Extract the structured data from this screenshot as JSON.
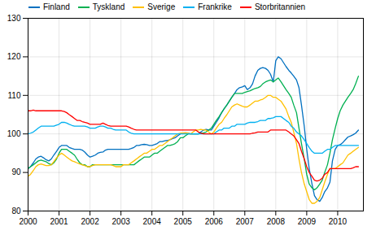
{
  "chart_data": {
    "type": "line",
    "x": [
      2000.0,
      2000.08,
      2000.17,
      2000.25,
      2000.33,
      2000.42,
      2000.5,
      2000.58,
      2000.67,
      2000.75,
      2000.83,
      2000.92,
      2001.0,
      2001.08,
      2001.17,
      2001.25,
      2001.33,
      2001.42,
      2001.5,
      2001.58,
      2001.67,
      2001.75,
      2001.83,
      2001.92,
      2002.0,
      2002.08,
      2002.17,
      2002.25,
      2002.33,
      2002.42,
      2002.5,
      2002.58,
      2002.67,
      2002.75,
      2002.83,
      2002.92,
      2003.0,
      2003.08,
      2003.17,
      2003.25,
      2003.33,
      2003.42,
      2003.5,
      2003.58,
      2003.67,
      2003.75,
      2003.83,
      2003.92,
      2004.0,
      2004.08,
      2004.17,
      2004.25,
      2004.33,
      2004.42,
      2004.5,
      2004.58,
      2004.67,
      2004.75,
      2004.83,
      2004.92,
      2005.0,
      2005.08,
      2005.17,
      2005.25,
      2005.33,
      2005.42,
      2005.5,
      2005.58,
      2005.67,
      2005.75,
      2005.83,
      2005.92,
      2006.0,
      2006.08,
      2006.17,
      2006.25,
      2006.33,
      2006.42,
      2006.5,
      2006.58,
      2006.67,
      2006.75,
      2006.83,
      2006.92,
      2007.0,
      2007.08,
      2007.17,
      2007.25,
      2007.33,
      2007.42,
      2007.5,
      2007.58,
      2007.67,
      2007.75,
      2007.83,
      2007.92,
      2008.0,
      2008.08,
      2008.17,
      2008.25,
      2008.33,
      2008.42,
      2008.5,
      2008.58,
      2008.67,
      2008.75,
      2008.83,
      2008.92,
      2009.0,
      2009.08,
      2009.17,
      2009.25,
      2009.33,
      2009.42,
      2009.5,
      2009.58,
      2009.67,
      2009.75,
      2009.83,
      2009.92,
      2010.0,
      2010.08,
      2010.17,
      2010.25,
      2010.33,
      2010.42,
      2010.5,
      2010.58,
      2010.67
    ],
    "series": [
      {
        "name": "Finland",
        "color": "#0070c0",
        "values": [
          91.0,
          91.5,
          92.5,
          93.5,
          94.0,
          94.2,
          93.8,
          93.3,
          93.0,
          93.5,
          94.5,
          95.5,
          96.5,
          97.0,
          97.0,
          97.0,
          96.5,
          96.2,
          96.0,
          96.0,
          96.0,
          95.8,
          95.3,
          94.5,
          94.0,
          94.2,
          94.5,
          95.0,
          95.2,
          95.3,
          95.8,
          96.0,
          96.0,
          96.0,
          96.0,
          96.0,
          96.0,
          96.0,
          96.0,
          96.0,
          96.2,
          96.5,
          97.0,
          97.0,
          97.2,
          97.3,
          97.2,
          97.0,
          97.0,
          97.2,
          97.5,
          98.0,
          98.0,
          98.2,
          98.3,
          98.5,
          98.8,
          99.0,
          99.5,
          100.0,
          100.2,
          100.3,
          100.2,
          100.0,
          100.0,
          100.0,
          100.0,
          100.5,
          101.0,
          101.2,
          101.0,
          101.0,
          102.0,
          103.0,
          104.2,
          105.5,
          106.5,
          107.5,
          108.5,
          109.5,
          110.5,
          111.5,
          112.0,
          112.2,
          112.5,
          111.5,
          112.0,
          113.0,
          115.0,
          116.5,
          117.0,
          117.2,
          117.0,
          116.5,
          115.5,
          113.5,
          119.0,
          120.0,
          119.5,
          118.5,
          117.5,
          116.5,
          115.8,
          115.0,
          114.0,
          112.0,
          107.5,
          102.0,
          96.0,
          91.0,
          87.0,
          84.0,
          83.0,
          82.5,
          83.5,
          85.0,
          86.0,
          87.5,
          93.0,
          96.0,
          97.0,
          97.2,
          97.8,
          98.5,
          99.2,
          99.5,
          99.8,
          100.2,
          101.0
        ]
      },
      {
        "name": "Tyskland",
        "color": "#00b050",
        "values": [
          91.0,
          91.5,
          92.0,
          92.5,
          93.0,
          93.2,
          93.0,
          92.8,
          92.3,
          92.0,
          92.5,
          93.5,
          95.0,
          96.0,
          96.0,
          96.0,
          95.5,
          95.0,
          94.5,
          93.5,
          92.5,
          92.0,
          92.0,
          91.5,
          91.5,
          92.0,
          92.0,
          92.0,
          92.0,
          92.0,
          92.0,
          92.0,
          92.0,
          92.0,
          92.0,
          92.0,
          92.0,
          92.0,
          92.0,
          92.0,
          92.0,
          92.0,
          92.5,
          93.0,
          93.5,
          94.0,
          94.0,
          94.0,
          94.5,
          95.0,
          95.0,
          95.5,
          96.0,
          96.5,
          97.0,
          97.0,
          97.2,
          97.5,
          98.0,
          99.0,
          99.0,
          99.5,
          100.0,
          100.0,
          100.0,
          100.0,
          100.0,
          100.2,
          100.3,
          100.5,
          101.0,
          101.5,
          102.5,
          103.5,
          104.5,
          105.5,
          106.5,
          107.5,
          108.5,
          109.5,
          110.5,
          110.5,
          110.5,
          110.5,
          110.8,
          111.0,
          111.2,
          111.5,
          111.8,
          112.0,
          112.3,
          113.0,
          113.5,
          113.8,
          114.0,
          113.5,
          114.0,
          114.5,
          113.5,
          112.5,
          111.5,
          110.5,
          109.5,
          107.5,
          105.5,
          101.5,
          97.5,
          93.5,
          89.5,
          87.0,
          86.0,
          85.5,
          86.0,
          87.0,
          88.0,
          90.0,
          92.0,
          95.0,
          98.5,
          101.5,
          104.0,
          106.0,
          107.5,
          108.5,
          109.5,
          110.5,
          111.5,
          113.0,
          115.0
        ]
      },
      {
        "name": "Sverige",
        "color": "#ffc000",
        "values": [
          89.0,
          89.5,
          90.5,
          91.5,
          92.0,
          92.2,
          92.0,
          91.8,
          91.8,
          92.0,
          92.8,
          93.8,
          94.5,
          95.0,
          94.5,
          94.0,
          93.5,
          93.0,
          92.8,
          92.5,
          92.2,
          92.0,
          91.8,
          91.5,
          91.5,
          91.8,
          92.0,
          92.0,
          92.0,
          92.0,
          92.0,
          92.0,
          92.0,
          91.8,
          91.5,
          91.5,
          91.5,
          92.0,
          92.0,
          92.0,
          92.5,
          93.0,
          93.5,
          94.0,
          94.5,
          95.0,
          95.0,
          95.5,
          96.0,
          96.0,
          96.5,
          97.0,
          97.0,
          97.5,
          98.0,
          98.5,
          99.0,
          99.5,
          100.0,
          100.2,
          100.2,
          100.3,
          100.2,
          100.0,
          100.5,
          101.0,
          101.0,
          101.2,
          101.0,
          101.0,
          100.5,
          100.0,
          100.5,
          101.5,
          102.5,
          103.0,
          104.0,
          105.0,
          106.0,
          107.0,
          107.5,
          107.8,
          107.5,
          107.2,
          107.0,
          107.0,
          107.5,
          108.0,
          108.5,
          108.5,
          108.8,
          109.0,
          109.5,
          110.0,
          110.0,
          109.5,
          109.5,
          109.0,
          108.5,
          107.5,
          106.5,
          104.5,
          103.0,
          100.5,
          97.5,
          93.5,
          90.0,
          87.0,
          85.0,
          83.0,
          82.0,
          82.0,
          82.5,
          83.5,
          85.5,
          87.5,
          89.5,
          91.0,
          91.0,
          91.0,
          91.5,
          92.0,
          92.5,
          93.5,
          94.5,
          95.0,
          95.5,
          96.0,
          96.5
        ]
      },
      {
        "name": "Frankrike",
        "color": "#00b0f0",
        "values": [
          100.0,
          100.2,
          100.5,
          101.0,
          101.5,
          102.0,
          102.0,
          102.0,
          102.0,
          102.0,
          102.0,
          102.3,
          102.5,
          103.0,
          103.0,
          102.8,
          102.5,
          102.2,
          102.0,
          102.0,
          102.0,
          102.0,
          102.0,
          101.8,
          101.5,
          101.5,
          101.5,
          101.8,
          102.0,
          102.0,
          101.8,
          101.5,
          101.5,
          101.2,
          101.0,
          101.0,
          101.0,
          101.0,
          101.0,
          100.5,
          100.2,
          100.0,
          100.0,
          100.0,
          100.0,
          100.0,
          100.0,
          100.0,
          100.0,
          100.0,
          100.0,
          100.0,
          100.0,
          100.0,
          100.0,
          100.0,
          100.0,
          100.0,
          100.0,
          100.0,
          100.0,
          100.0,
          100.0,
          100.0,
          100.0,
          100.0,
          100.0,
          100.0,
          100.0,
          100.0,
          100.0,
          100.0,
          100.0,
          100.5,
          101.0,
          101.0,
          101.5,
          101.5,
          101.5,
          102.0,
          102.0,
          102.5,
          102.5,
          102.5,
          102.5,
          102.8,
          103.0,
          103.0,
          103.0,
          103.2,
          103.5,
          103.5,
          103.5,
          104.0,
          104.0,
          104.2,
          104.5,
          104.5,
          104.5,
          104.0,
          103.5,
          103.0,
          102.0,
          101.5,
          100.5,
          100.0,
          99.5,
          98.5,
          97.5,
          96.5,
          95.5,
          95.0,
          95.0,
          95.0,
          95.0,
          95.5,
          96.0,
          96.0,
          96.5,
          97.0,
          97.0,
          97.0,
          97.0,
          97.0,
          97.0,
          97.0,
          97.0,
          97.0,
          97.0
        ]
      },
      {
        "name": "Storbritannien",
        "color": "#ff0000",
        "values": [
          106.0,
          106.0,
          106.2,
          106.0,
          106.0,
          106.0,
          106.0,
          106.0,
          106.0,
          106.0,
          106.0,
          106.0,
          106.0,
          106.0,
          105.8,
          105.5,
          105.0,
          104.5,
          104.0,
          103.5,
          103.5,
          103.2,
          103.0,
          102.8,
          102.5,
          102.5,
          102.5,
          102.5,
          102.5,
          102.8,
          102.5,
          102.2,
          102.0,
          102.0,
          102.0,
          102.0,
          102.0,
          102.0,
          102.0,
          101.8,
          101.5,
          101.2,
          101.0,
          101.0,
          101.0,
          101.0,
          101.0,
          101.0,
          101.0,
          101.0,
          101.0,
          101.0,
          101.0,
          101.0,
          101.0,
          101.0,
          101.0,
          101.0,
          101.0,
          101.0,
          101.0,
          101.0,
          101.0,
          101.0,
          101.0,
          101.0,
          100.5,
          100.2,
          100.0,
          100.0,
          100.0,
          100.0,
          100.0,
          100.0,
          100.0,
          100.0,
          100.0,
          100.0,
          100.0,
          100.0,
          100.0,
          100.0,
          100.0,
          100.0,
          100.0,
          100.0,
          100.0,
          100.2,
          100.3,
          100.5,
          100.5,
          100.5,
          100.5,
          100.5,
          101.0,
          101.0,
          101.0,
          101.0,
          101.0,
          101.0,
          101.0,
          100.5,
          100.0,
          99.5,
          98.5,
          97.5,
          95.5,
          93.5,
          91.5,
          90.0,
          89.0,
          88.0,
          87.8,
          88.0,
          88.5,
          89.5,
          90.0,
          91.0,
          91.0,
          91.0,
          91.0,
          91.0,
          91.0,
          91.0,
          91.0,
          91.0,
          91.2,
          91.5,
          91.5
        ]
      }
    ],
    "xlim": [
      2000.0,
      2010.83
    ],
    "xticks": [
      2000,
      2001,
      2002,
      2003,
      2004,
      2005,
      2006,
      2007,
      2008,
      2009,
      2010
    ],
    "ylim": [
      80,
      130
    ],
    "yticks": [
      80,
      90,
      100,
      110,
      120,
      130
    ],
    "grid": true,
    "legend": "upper left"
  }
}
